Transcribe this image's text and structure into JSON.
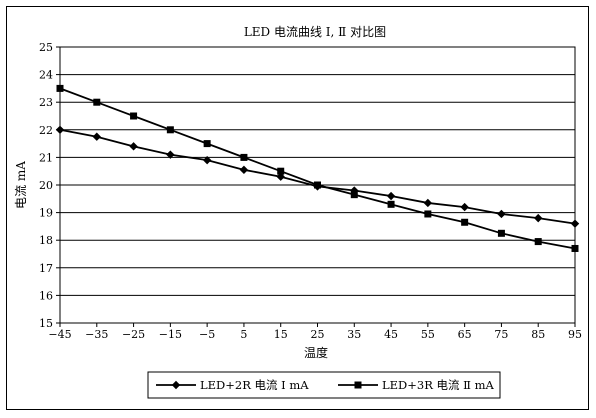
{
  "chart_data": {
    "type": "line",
    "title": "LED 电流曲线 Ⅰ, Ⅱ 对比图",
    "xlabel": "温度",
    "ylabel": "电流 mA",
    "x": [
      -45,
      -35,
      -25,
      -15,
      -5,
      5,
      15,
      25,
      35,
      45,
      55,
      65,
      75,
      85,
      95
    ],
    "x_tick_labels": [
      "−45",
      "−35",
      "−25",
      "−15",
      "−5",
      "5",
      "15",
      "25",
      "35",
      "45",
      "55",
      "65",
      "75",
      "85",
      "95"
    ],
    "ylim": [
      15,
      25
    ],
    "y_ticks": [
      15,
      16,
      17,
      18,
      19,
      20,
      21,
      22,
      23,
      24,
      25
    ],
    "grid": true,
    "legend_position": "bottom",
    "series": [
      {
        "name": "LED+2R 电流 Ⅰ mA",
        "marker": "diamond",
        "color": "#000000",
        "values": [
          22.0,
          21.75,
          21.4,
          21.1,
          20.9,
          20.55,
          20.3,
          19.95,
          19.8,
          19.6,
          19.35,
          19.2,
          18.95,
          18.8,
          18.6
        ]
      },
      {
        "name": "LED+3R 电流 Ⅱ mA",
        "marker": "square",
        "color": "#000000",
        "values": [
          23.5,
          23.0,
          22.5,
          22.0,
          21.5,
          21.0,
          20.5,
          20.0,
          19.65,
          19.3,
          18.95,
          18.65,
          18.25,
          17.95,
          17.7
        ]
      }
    ]
  }
}
